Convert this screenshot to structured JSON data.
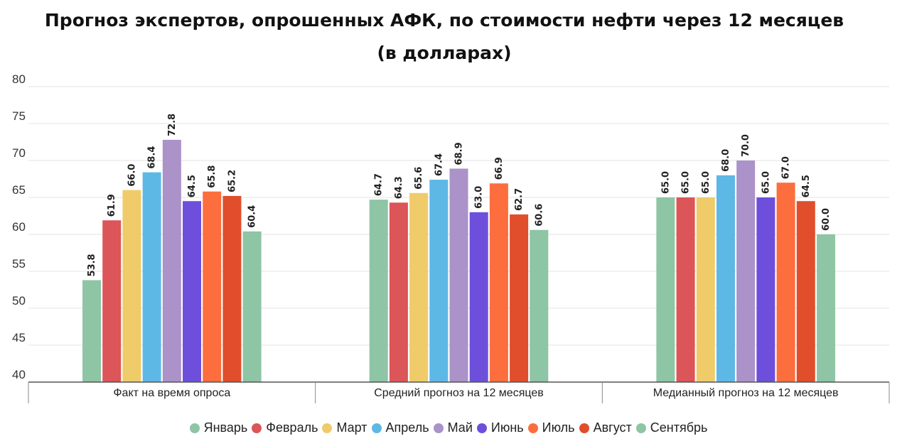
{
  "chart_data": {
    "type": "bar",
    "title_line1": "Прогноз экспертов, опрошенных АФК, по стоимости нефти через 12 месяцев",
    "title_line2": "(в долларах)",
    "categories": [
      "Факт на время опроса",
      "Средний прогноз на 12 месяцев",
      "Медианный прогноз на 12 месяцев"
    ],
    "ylim": [
      40,
      80
    ],
    "yticks": [
      40,
      45,
      50,
      55,
      60,
      65,
      70,
      75,
      80
    ],
    "grid": true,
    "legend_position": "bottom",
    "series": [
      {
        "name": "Январь",
        "color": "#8ec5a4",
        "values": [
          53.8,
          64.7,
          65.0
        ],
        "labels": [
          "53.8",
          "64.7",
          "65.0"
        ]
      },
      {
        "name": "Февраль",
        "color": "#dc5558",
        "values": [
          61.9,
          64.3,
          65.0
        ],
        "labels": [
          "61.9",
          "64.3",
          "65.0"
        ]
      },
      {
        "name": "Март",
        "color": "#efcb6a",
        "values": [
          66.0,
          65.6,
          65.0
        ],
        "labels": [
          "66.0",
          "65.6",
          "65.0"
        ]
      },
      {
        "name": "Апрель",
        "color": "#5db8e6",
        "values": [
          68.4,
          67.4,
          68.0
        ],
        "labels": [
          "68.4",
          "67.4",
          "68.0"
        ]
      },
      {
        "name": "Май",
        "color": "#ab92c9",
        "values": [
          72.8,
          68.9,
          70.0
        ],
        "labels": [
          "72.8",
          "68.9",
          "70.0"
        ]
      },
      {
        "name": "Июнь",
        "color": "#6e4fdc",
        "values": [
          64.5,
          63.0,
          65.0
        ],
        "labels": [
          "64.5",
          "63.0",
          "65.0"
        ]
      },
      {
        "name": "Июль",
        "color": "#fc6e3d",
        "values": [
          65.8,
          66.9,
          67.0
        ],
        "labels": [
          "65.8",
          "66.9",
          "67.0"
        ]
      },
      {
        "name": "Август",
        "color": "#e04e2c",
        "values": [
          65.2,
          62.7,
          64.5
        ],
        "labels": [
          "65.2",
          "62.7",
          "64.5"
        ]
      },
      {
        "name": "Сентябрь",
        "color": "#8ec5a4",
        "values": [
          60.4,
          60.6,
          60.0
        ],
        "labels": [
          "60.4",
          "60.6",
          "60.0"
        ]
      }
    ]
  }
}
